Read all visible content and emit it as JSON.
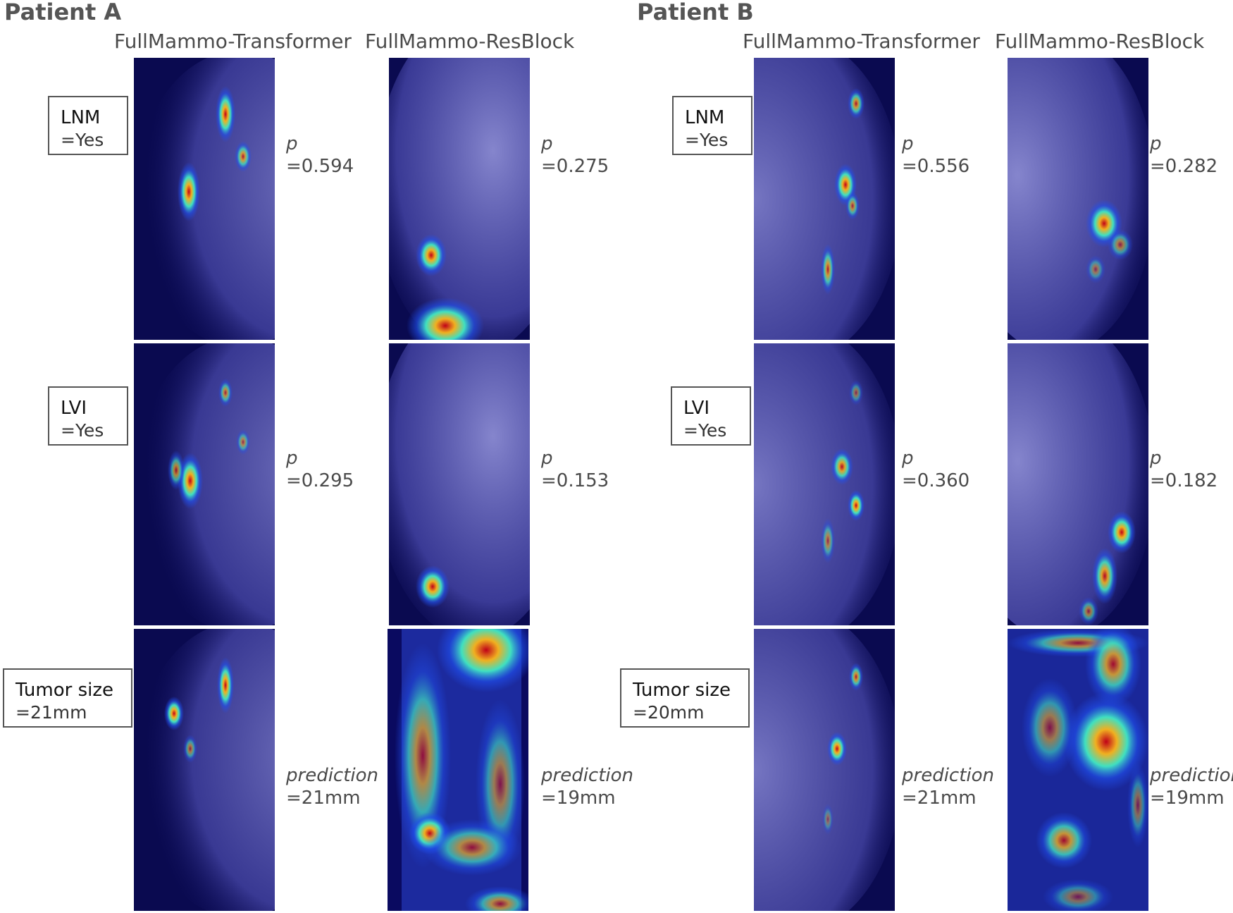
{
  "patients": [
    {
      "title": "Patient A",
      "columns": [
        "FullMammo-Transformer",
        "FullMammo-ResBlock"
      ],
      "rows": [
        {
          "label_name": "LNM",
          "label_value": "=Yes",
          "values": [
            {
              "key": "p",
              "value": "=0.594"
            },
            {
              "key": "p",
              "value": "=0.275"
            }
          ]
        },
        {
          "label_name": "LVI",
          "label_value": "=Yes",
          "values": [
            {
              "key": "p",
              "value": "=0.295"
            },
            {
              "key": "p",
              "value": "=0.153"
            }
          ]
        },
        {
          "label_name": "Tumor size",
          "label_value": "=21mm",
          "values": [
            {
              "key": "prediction",
              "value": "=21mm"
            },
            {
              "key": "prediction",
              "value": "=19mm"
            }
          ]
        }
      ]
    },
    {
      "title": "Patient B",
      "columns": [
        "FullMammo-Transformer",
        "FullMammo-ResBlock"
      ],
      "rows": [
        {
          "label_name": "LNM",
          "label_value": "=Yes",
          "values": [
            {
              "key": "p",
              "value": "=0.556"
            },
            {
              "key": "p",
              "value": "=0.282"
            }
          ]
        },
        {
          "label_name": "LVI",
          "label_value": "=Yes",
          "values": [
            {
              "key": "p",
              "value": "=0.360"
            },
            {
              "key": "p",
              "value": "=0.182"
            }
          ]
        },
        {
          "label_name": "Tumor size",
          "label_value": "=20mm",
          "values": [
            {
              "key": "prediction",
              "value": "=21mm"
            },
            {
              "key": "prediction",
              "value": "=19mm"
            }
          ]
        }
      ]
    }
  ],
  "colors": {
    "background_dark": "#0a0a50",
    "tissue": "#7c7cd8",
    "heat_hot": "#d0101a",
    "heat_warm": "#f0d020",
    "heat_cool": "#30d0e0"
  }
}
